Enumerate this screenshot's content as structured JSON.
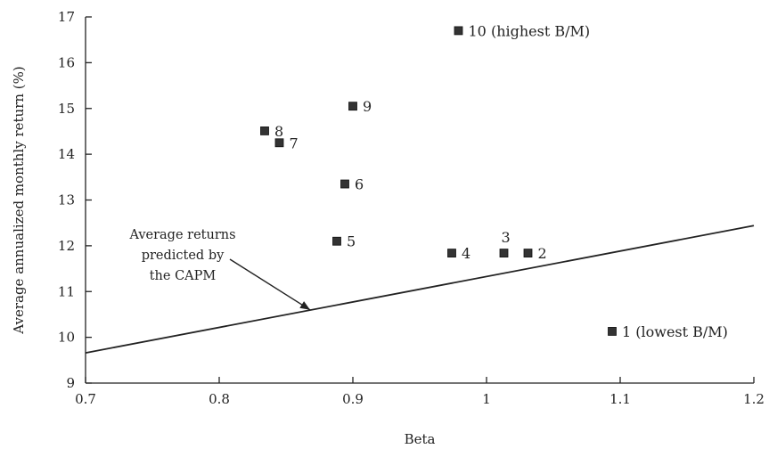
{
  "chart_data": {
    "type": "scatter",
    "xlabel": "Beta",
    "ylabel": "Average annualized monthly return (%)",
    "xlim": [
      0.7,
      1.2
    ],
    "ylim": [
      9,
      17
    ],
    "xticks": [
      "0.7",
      "0.8",
      "0.9",
      "1",
      "1.1",
      "1.2"
    ],
    "yticks": [
      "9",
      "10",
      "11",
      "12",
      "13",
      "14",
      "15",
      "16",
      "17"
    ],
    "grid": false,
    "points": [
      {
        "label": "1 (lowest B/M)",
        "x": 1.094,
        "y": 10.13
      },
      {
        "label": "2",
        "x": 1.031,
        "y": 11.84
      },
      {
        "label": "3",
        "x": 1.013,
        "y": 11.84
      },
      {
        "label": "4",
        "x": 0.974,
        "y": 11.84
      },
      {
        "label": "5",
        "x": 0.888,
        "y": 12.1
      },
      {
        "label": "6",
        "x": 0.894,
        "y": 13.35
      },
      {
        "label": "7",
        "x": 0.845,
        "y": 14.25
      },
      {
        "label": "8",
        "x": 0.834,
        "y": 14.51
      },
      {
        "label": "9",
        "x": 0.9,
        "y": 15.05
      },
      {
        "label": "10 (highest B/M)",
        "x": 0.979,
        "y": 16.7
      }
    ],
    "line": {
      "name": "Average returns predicted by the CAPM",
      "x": [
        0.7,
        1.2
      ],
      "y": [
        9.66,
        12.44
      ]
    },
    "annotation": {
      "lines": [
        "Average returns",
        "predicted by",
        "the CAPM"
      ],
      "arrow_target": {
        "x": 0.868,
        "y": 10.6
      }
    }
  }
}
